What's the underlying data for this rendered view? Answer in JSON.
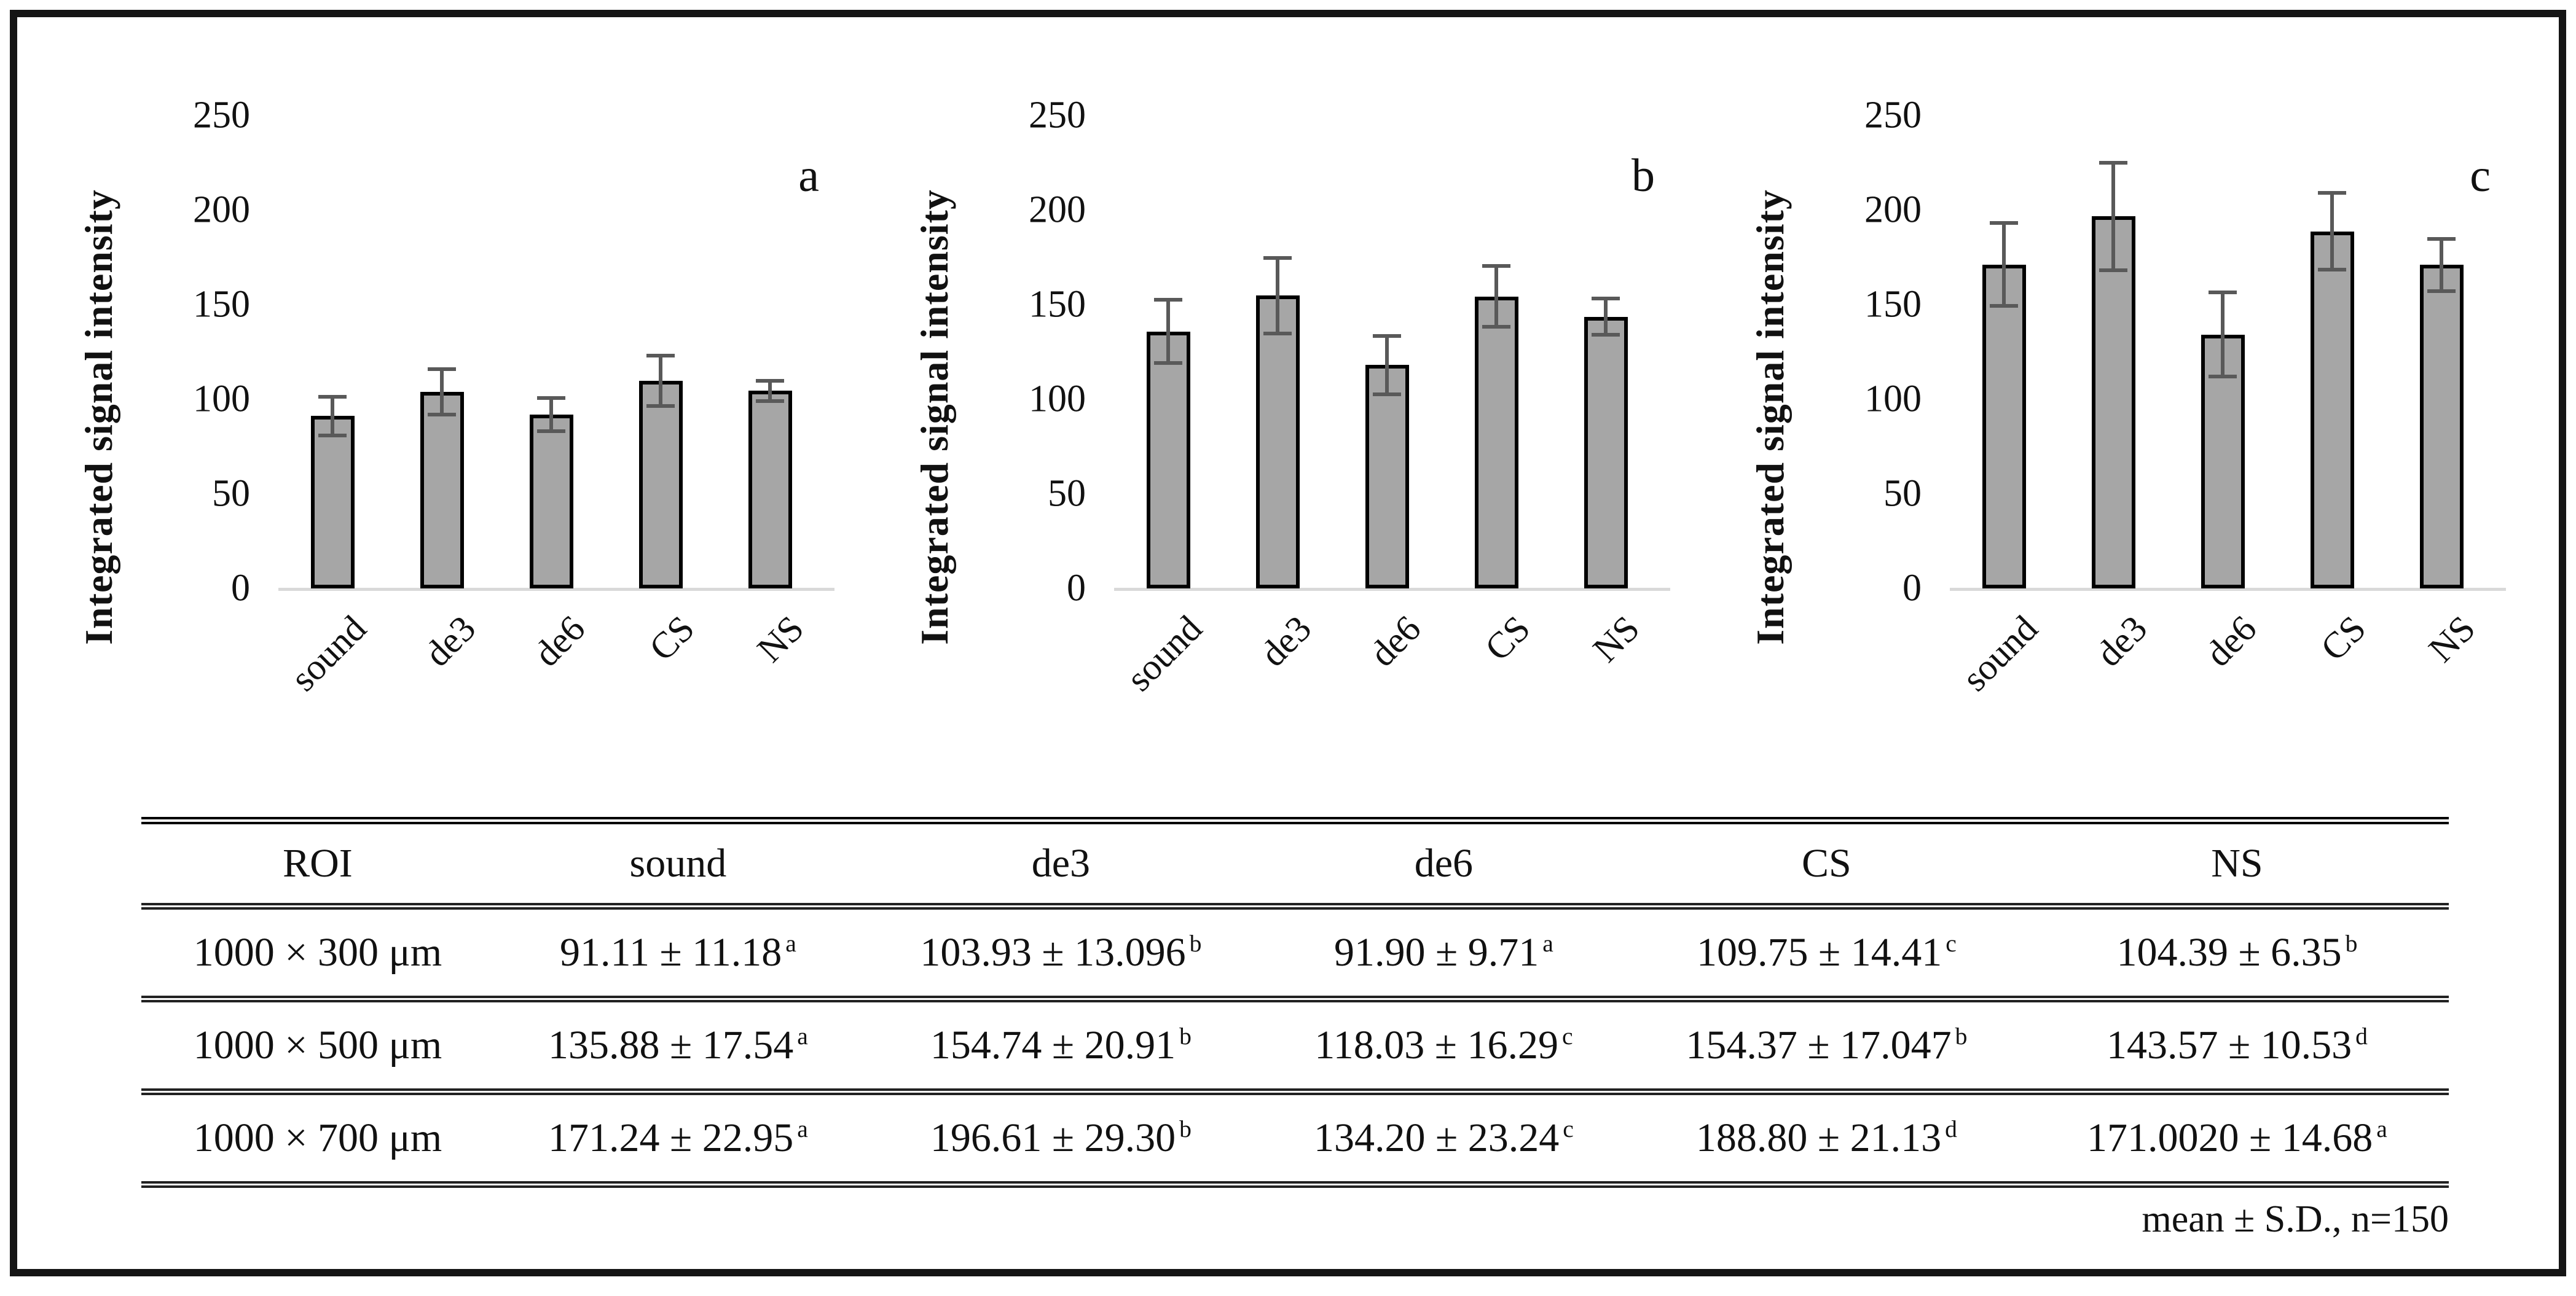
{
  "chart_data": [
    {
      "type": "bar",
      "panel_label": "a",
      "roi": "1000 × 300 μm",
      "categories": [
        "sound",
        "de3",
        "de6",
        "CS",
        "NS"
      ],
      "values": [
        91.11,
        103.93,
        91.9,
        109.75,
        104.39
      ],
      "errors": [
        11.18,
        13.096,
        9.71,
        14.41,
        6.35
      ],
      "ylabel": "Integrated signal intensity",
      "xlabel": "",
      "ylim": [
        0,
        250
      ],
      "yticks": [
        0,
        50,
        100,
        150,
        200,
        250
      ],
      "grid": false,
      "legend": false
    },
    {
      "type": "bar",
      "panel_label": "b",
      "roi": "1000 × 500 μm",
      "categories": [
        "sound",
        "de3",
        "de6",
        "CS",
        "NS"
      ],
      "values": [
        135.88,
        154.74,
        118.03,
        154.37,
        143.57
      ],
      "errors": [
        17.54,
        20.91,
        16.29,
        17.047,
        10.53
      ],
      "ylabel": "Integrated signal intensity",
      "xlabel": "",
      "ylim": [
        0,
        250
      ],
      "yticks": [
        0,
        50,
        100,
        150,
        200,
        250
      ],
      "grid": false,
      "legend": false
    },
    {
      "type": "bar",
      "panel_label": "c",
      "roi": "1000 × 700 μm",
      "categories": [
        "sound",
        "de3",
        "de6",
        "CS",
        "NS"
      ],
      "values": [
        171.24,
        196.61,
        134.2,
        188.8,
        171.002
      ],
      "errors": [
        22.95,
        29.3,
        23.24,
        21.13,
        14.68
      ],
      "ylabel": "Integrated signal intensity",
      "xlabel": "",
      "ylim": [
        0,
        250
      ],
      "yticks": [
        0,
        50,
        100,
        150,
        200,
        250
      ],
      "grid": false,
      "legend": false
    }
  ],
  "table": {
    "headers": [
      "ROI",
      "sound",
      "de3",
      "de6",
      "CS",
      "NS"
    ],
    "rows": [
      {
        "roi": "1000 × 300 μm",
        "cells": [
          {
            "value": "91.11 ± 11.18",
            "sup": "a"
          },
          {
            "value": "103.93 ± 13.096",
            "sup": "b"
          },
          {
            "value": "91.90 ± 9.71",
            "sup": "a"
          },
          {
            "value": "109.75 ± 14.41",
            "sup": "c"
          },
          {
            "value": "104.39 ± 6.35",
            "sup": "b"
          }
        ]
      },
      {
        "roi": "1000 × 500 μm",
        "cells": [
          {
            "value": "135.88 ± 17.54",
            "sup": "a"
          },
          {
            "value": "154.74 ± 20.91",
            "sup": "b"
          },
          {
            "value": "118.03 ± 16.29",
            "sup": "c"
          },
          {
            "value": "154.37 ± 17.047",
            "sup": "b"
          },
          {
            "value": "143.57 ± 10.53",
            "sup": "d"
          }
        ]
      },
      {
        "roi": "1000 × 700 μm",
        "cells": [
          {
            "value": "171.24 ± 22.95",
            "sup": "a"
          },
          {
            "value": "196.61 ± 29.30",
            "sup": "b"
          },
          {
            "value": "134.20 ± 23.24",
            "sup": "c"
          },
          {
            "value": "188.80 ± 21.13",
            "sup": "d"
          },
          {
            "value": "171.0020 ± 14.68",
            "sup": "a"
          }
        ]
      }
    ],
    "footnote": "mean ± S.D., n=150"
  },
  "colors": {
    "bar_fill": "#a6a6a6",
    "bar_border": "#000000",
    "error_bar": "#595959",
    "axis_baseline": "#d9d9d9",
    "figure_border": "#151515",
    "text": "#111111"
  }
}
